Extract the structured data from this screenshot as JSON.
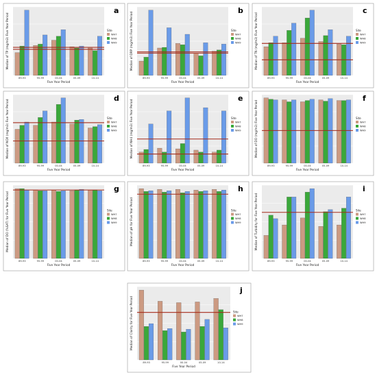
{
  "chart_data": [
    {
      "panel": "a",
      "type": "bar",
      "categories": [
        "89-93",
        "95-99",
        "00-04",
        "05-09",
        "10-14"
      ],
      "series": [
        {
          "name": "WH7",
          "values": [
            0.35,
            0.46,
            0.54,
            0.44,
            0.42
          ]
        },
        {
          "name": "WH8",
          "values": [
            0.45,
            0.48,
            0.6,
            0.42,
            0.38
          ]
        },
        {
          "name": "WH9",
          "values": [
            1.0,
            0.62,
            0.7,
            0.45,
            0.6
          ]
        }
      ],
      "references": [
        0.43,
        0.4
      ],
      "ylim": [
        0,
        1.05
      ],
      "ylabel": "Median of TP (mg/m3) Five Year Period",
      "xlabel": "Five Year Period",
      "legend_title": "Site",
      "grid": true,
      "legend": "right"
    },
    {
      "panel": "b",
      "type": "bar",
      "categories": [
        "89-93",
        "95-99",
        "00-04",
        "05-09",
        "10-14"
      ],
      "series": [
        {
          "name": "WH7",
          "values": [
            0.22,
            0.42,
            0.49,
            0.34,
            0.37
          ]
        },
        {
          "name": "WH8",
          "values": [
            0.28,
            0.43,
            0.47,
            0.3,
            0.39
          ]
        },
        {
          "name": "WH9",
          "values": [
            1.0,
            0.73,
            0.63,
            0.5,
            0.48
          ]
        }
      ],
      "references": [
        0.36,
        0.34
      ],
      "ylim": [
        0,
        1.05
      ],
      "ylabel": "Median of DRP (mg/m3) Five Year Period",
      "xlabel": "Five Year Period",
      "legend_title": "Site",
      "grid": true,
      "legend": "right"
    },
    {
      "panel": "c",
      "type": "bar",
      "categories": [
        "89-93",
        "95-99",
        "00-04",
        "05-09",
        "10-14"
      ],
      "series": [
        {
          "name": "WH7",
          "values": [
            0.44,
            0.5,
            0.57,
            0.52,
            0.48
          ]
        },
        {
          "name": "WH8",
          "values": [
            0.5,
            0.69,
            0.88,
            0.61,
            0.47
          ]
        },
        {
          "name": "WH9",
          "values": [
            0.6,
            0.8,
            1.0,
            0.7,
            0.6
          ]
        }
      ],
      "references": [
        0.49,
        0.24
      ],
      "ylim": [
        0,
        1.05
      ],
      "ylabel": "Median of TN (mg/m3) Five Year Period",
      "xlabel": "Five Year Period",
      "legend_title": "Site",
      "grid": true,
      "legend": "right"
    },
    {
      "panel": "d",
      "type": "bar",
      "categories": [
        "89-93",
        "95-99",
        "00-04",
        "05-09",
        "10-14"
      ],
      "series": [
        {
          "name": "WH7",
          "values": [
            0.52,
            0.58,
            0.63,
            0.6,
            0.54
          ]
        },
        {
          "name": "WH8",
          "values": [
            0.58,
            0.7,
            0.9,
            0.66,
            0.56
          ]
        },
        {
          "name": "WH9",
          "values": [
            0.63,
            0.8,
            1.0,
            0.67,
            0.59
          ]
        }
      ],
      "references": [
        0.62,
        0.34
      ],
      "ylim": [
        0,
        1.05
      ],
      "ylabel": "Median of NOX (mg/m3) Five Year Period",
      "xlabel": "Five Year Period",
      "legend_title": "Site",
      "grid": true,
      "legend": "right"
    },
    {
      "panel": "e",
      "type": "bar",
      "categories": [
        "89-93",
        "95-99",
        "00-04",
        "05-09",
        "10-14"
      ],
      "series": [
        {
          "name": "WH7",
          "values": [
            0.17,
            0.23,
            0.22,
            0.2,
            0.17
          ]
        },
        {
          "name": "WH8",
          "values": [
            0.21,
            0.17,
            0.3,
            0.17,
            0.2
          ]
        },
        {
          "name": "WH9",
          "values": [
            0.6,
            0.8,
            1.0,
            0.85,
            0.8
          ]
        }
      ],
      "references": [
        0.37,
        0.14
      ],
      "ylim": [
        0,
        1.05
      ],
      "ylabel": "Median of NH4 (mg/m3) Five Year Period",
      "xlabel": "Five Year Period",
      "legend_title": "Site",
      "grid": true,
      "legend": "right"
    },
    {
      "panel": "f",
      "type": "bar",
      "categories": [
        "89-93",
        "95-99",
        "00-04",
        "05-09",
        "10-14"
      ],
      "series": [
        {
          "name": "WH7",
          "values": [
            1.0,
            0.97,
            0.94,
            0.97,
            0.96
          ]
        },
        {
          "name": "WH8",
          "values": [
            0.98,
            0.94,
            0.96,
            0.95,
            0.96
          ]
        },
        {
          "name": "WH9",
          "values": [
            0.97,
            0.97,
            0.98,
            0.99,
            0.97
          ]
        }
      ],
      "references": [
        0.5
      ],
      "ylim": [
        0,
        1.05
      ],
      "ylabel": "Median of DO (mg/m3) Five Year Period",
      "xlabel": "Five Year Period",
      "legend_title": "Site",
      "grid": true,
      "legend": "right"
    },
    {
      "panel": "g",
      "type": "bar",
      "categories": [
        "89-93",
        "95-99",
        "00-04",
        "05-09",
        "10-14"
      ],
      "series": [
        {
          "name": "WH7",
          "values": [
            1.0,
            0.98,
            0.98,
            0.97,
            0.98
          ]
        },
        {
          "name": "WH8",
          "values": [
            1.0,
            0.97,
            0.96,
            0.98,
            0.98
          ]
        },
        {
          "name": "WH9",
          "values": [
            0.98,
            0.97,
            0.97,
            0.99,
            0.97
          ]
        }
      ],
      "references": [
        0.98
      ],
      "ylim": [
        0,
        1.05
      ],
      "ylabel": "Median of DO (%SAT) for Five Year Period",
      "xlabel": "Five Year Period",
      "legend_title": "Site",
      "grid": true,
      "legend": "right"
    },
    {
      "panel": "h",
      "type": "bar",
      "categories": [
        "89-93",
        "95-99",
        "00-04",
        "05-09",
        "10-14"
      ],
      "series": [
        {
          "name": "WH7",
          "values": [
            1.0,
            0.99,
            0.99,
            0.98,
            0.99
          ]
        },
        {
          "name": "WH8",
          "values": [
            0.96,
            0.95,
            0.94,
            0.96,
            0.96
          ]
        },
        {
          "name": "WH9",
          "values": [
            0.97,
            0.97,
            0.96,
            0.97,
            0.98
          ]
        }
      ],
      "references": [
        0.92
      ],
      "ylim": [
        0,
        1.05
      ],
      "ylabel": "Median of pH for Five Year Period",
      "xlabel": "Five Year Period",
      "legend_title": "Site",
      "grid": true,
      "legend": "right"
    },
    {
      "panel": "i",
      "type": "bar",
      "categories": [
        "89-93",
        "95-99",
        "00-04",
        "05-09",
        "10-14"
      ],
      "series": [
        {
          "name": "WH7",
          "values": [
            0.33,
            0.48,
            0.58,
            0.46,
            0.48
          ]
        },
        {
          "name": "WH8",
          "values": [
            0.62,
            0.88,
            0.95,
            0.67,
            0.72
          ]
        },
        {
          "name": "WH9",
          "values": [
            0.57,
            0.88,
            1.0,
            0.7,
            0.88
          ]
        }
      ],
      "references": [
        0.66
      ],
      "ylim": [
        0,
        1.05
      ],
      "ylabel": "Median of Turbidity for Five Year Period",
      "xlabel": "Five Year Period",
      "legend_title": "Site",
      "grid": true,
      "legend": "right"
    },
    {
      "panel": "j",
      "type": "bar",
      "categories": [
        "89-93",
        "95-99",
        "00-04",
        "05-09",
        "10-14"
      ],
      "series": [
        {
          "name": "WH7",
          "values": [
            1.0,
            0.84,
            0.82,
            0.83,
            0.88
          ]
        },
        {
          "name": "WH8",
          "values": [
            0.48,
            0.42,
            0.4,
            0.48,
            0.72
          ]
        },
        {
          "name": "WH9",
          "values": [
            0.52,
            0.45,
            0.44,
            0.58,
            0.46
          ]
        }
      ],
      "references": [
        0.68
      ],
      "ylim": [
        0,
        1.05
      ],
      "ylabel": "Median of Clarity for Five Year Period",
      "xlabel": "Five Year Period",
      "legend_title": "Site",
      "grid": true,
      "legend": "right"
    }
  ],
  "colors": {
    "WH7": "#cc9a82",
    "WH8": "#3aa83a",
    "WH9": "#6a9be8",
    "reference": "#a52a1a",
    "panel_bg": "#ebebeb",
    "grid": "#ffffff"
  }
}
